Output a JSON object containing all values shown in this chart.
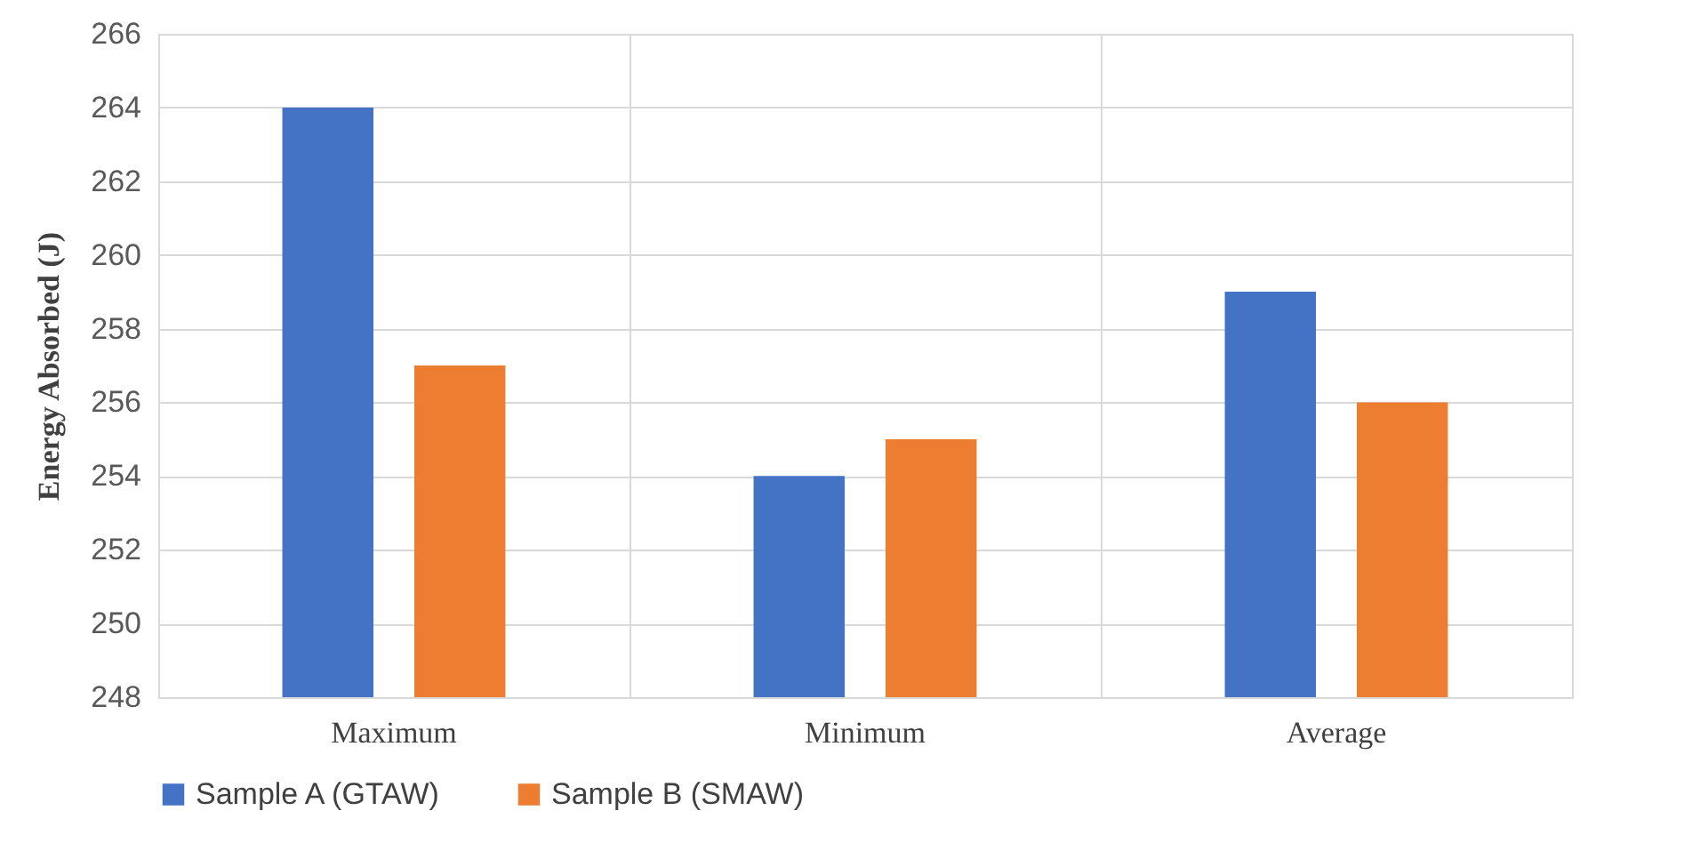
{
  "chart_data": {
    "type": "bar",
    "ylabel": "Energy Absorbed (J)",
    "categories": [
      "Maximum",
      "Minimum",
      "Average"
    ],
    "series": [
      {
        "name": "Sample A (GTAW)",
        "color": "#4472c4",
        "values": [
          264,
          254,
          259
        ]
      },
      {
        "name": "Sample B (SMAW)",
        "color": "#ed7d31",
        "values": [
          257,
          255,
          256
        ]
      }
    ],
    "ylim": [
      248,
      266
    ],
    "yticks": [
      248,
      250,
      252,
      254,
      256,
      258,
      260,
      262,
      264,
      266
    ],
    "grid": true,
    "legend": "bottom"
  }
}
